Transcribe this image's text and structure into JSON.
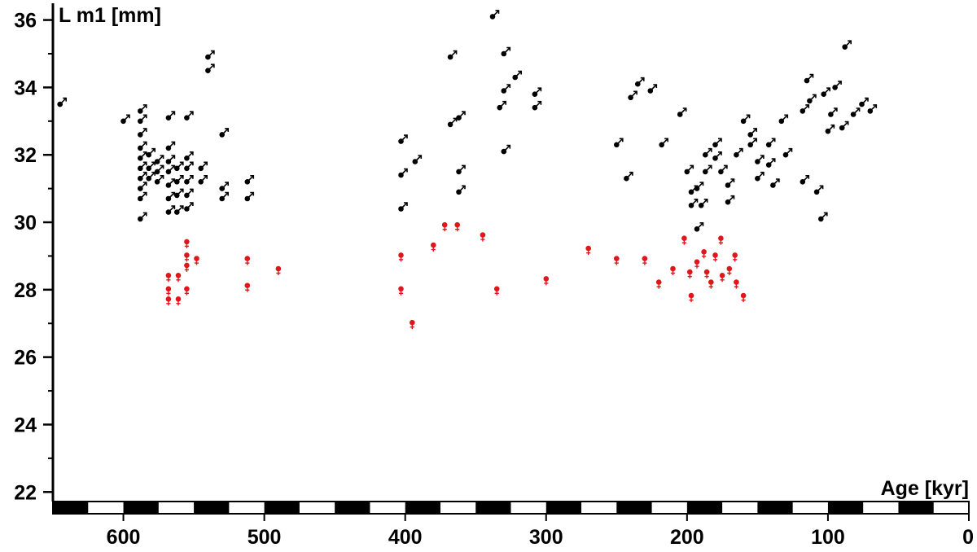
{
  "chart_data": {
    "type": "scatter",
    "title": "",
    "xlabel": "Age [kyr]",
    "ylabel": "L m1 [mm]",
    "xlim": [
      650,
      0
    ],
    "ylim": [
      21.5,
      36.4
    ],
    "x_reversed": true,
    "x_ticks": [
      "600",
      "500",
      "400",
      "300",
      "200",
      "100",
      "0"
    ],
    "y_ticks": [
      "22",
      "24",
      "26",
      "28",
      "30",
      "32",
      "34",
      "36"
    ],
    "grid": false,
    "colors": {
      "male": "#000000",
      "female": "#e0161b"
    },
    "series": [
      {
        "symbol": "male",
        "color": "#000000",
        "points": [
          [
            645,
            33.5
          ],
          [
            600,
            33.0
          ],
          [
            588,
            33.3
          ],
          [
            588,
            33.0
          ],
          [
            588,
            32.6
          ],
          [
            588,
            32.2
          ],
          [
            588,
            31.9
          ],
          [
            588,
            31.6
          ],
          [
            588,
            31.3
          ],
          [
            588,
            31.0
          ],
          [
            588,
            30.7
          ],
          [
            588,
            30.1
          ],
          [
            582,
            32.0
          ],
          [
            582,
            31.6
          ],
          [
            582,
            31.3
          ],
          [
            576,
            31.8
          ],
          [
            576,
            31.5
          ],
          [
            576,
            31.2
          ],
          [
            568,
            33.1
          ],
          [
            568,
            32.2
          ],
          [
            568,
            31.8
          ],
          [
            568,
            31.5
          ],
          [
            568,
            31.1
          ],
          [
            568,
            30.7
          ],
          [
            568,
            30.3
          ],
          [
            562,
            31.6
          ],
          [
            562,
            31.2
          ],
          [
            562,
            30.8
          ],
          [
            562,
            30.3
          ],
          [
            555,
            33.1
          ],
          [
            555,
            31.9
          ],
          [
            555,
            31.6
          ],
          [
            555,
            31.2
          ],
          [
            555,
            30.8
          ],
          [
            555,
            30.4
          ],
          [
            545,
            31.6
          ],
          [
            545,
            31.2
          ],
          [
            540,
            34.9
          ],
          [
            540,
            34.5
          ],
          [
            530,
            32.6
          ],
          [
            530,
            31.0
          ],
          [
            530,
            30.7
          ],
          [
            512,
            31.2
          ],
          [
            512,
            30.7
          ],
          [
            403,
            32.4
          ],
          [
            403,
            31.4
          ],
          [
            403,
            30.4
          ],
          [
            393,
            31.8
          ],
          [
            368,
            34.9
          ],
          [
            362,
            33.1
          ],
          [
            368,
            32.9
          ],
          [
            362,
            31.5
          ],
          [
            362,
            30.9
          ],
          [
            338,
            36.1
          ],
          [
            330,
            35.0
          ],
          [
            322,
            34.3
          ],
          [
            330,
            33.9
          ],
          [
            333,
            33.4
          ],
          [
            330,
            32.1
          ],
          [
            308,
            33.8
          ],
          [
            308,
            33.4
          ],
          [
            250,
            32.3
          ],
          [
            240,
            33.7
          ],
          [
            235,
            34.1
          ],
          [
            226,
            33.9
          ],
          [
            243,
            31.3
          ],
          [
            218,
            32.3
          ],
          [
            205,
            33.2
          ],
          [
            200,
            31.5
          ],
          [
            193,
            31.0
          ],
          [
            190,
            30.5
          ],
          [
            197,
            30.9
          ],
          [
            197,
            30.5
          ],
          [
            193,
            29.8
          ],
          [
            187,
            32.0
          ],
          [
            187,
            31.5
          ],
          [
            180,
            32.3
          ],
          [
            180,
            31.9
          ],
          [
            176,
            31.5
          ],
          [
            171,
            31.1
          ],
          [
            171,
            30.6
          ],
          [
            165,
            32.0
          ],
          [
            160,
            33.0
          ],
          [
            155,
            32.6
          ],
          [
            155,
            32.3
          ],
          [
            150,
            31.8
          ],
          [
            150,
            31.3
          ],
          [
            142,
            32.3
          ],
          [
            142,
            31.7
          ],
          [
            139,
            31.1
          ],
          [
            133,
            33.0
          ],
          [
            130,
            32.0
          ],
          [
            118,
            33.3
          ],
          [
            115,
            34.2
          ],
          [
            113,
            33.6
          ],
          [
            103,
            33.8
          ],
          [
            95,
            34.0
          ],
          [
            88,
            35.2
          ],
          [
            100,
            32.7
          ],
          [
            90,
            32.8
          ],
          [
            98,
            33.2
          ],
          [
            82,
            33.2
          ],
          [
            76,
            33.5
          ],
          [
            70,
            33.3
          ],
          [
            118,
            31.2
          ],
          [
            108,
            30.9
          ],
          [
            105,
            30.1
          ]
        ]
      },
      {
        "symbol": "female",
        "color": "#e0161b",
        "points": [
          [
            568,
            28.4
          ],
          [
            568,
            28.0
          ],
          [
            568,
            27.7
          ],
          [
            561,
            28.4
          ],
          [
            561,
            27.7
          ],
          [
            555,
            29.4
          ],
          [
            555,
            29.0
          ],
          [
            555,
            28.7
          ],
          [
            555,
            28.0
          ],
          [
            548,
            28.9
          ],
          [
            512,
            28.9
          ],
          [
            512,
            28.1
          ],
          [
            490,
            28.6
          ],
          [
            403,
            29.0
          ],
          [
            403,
            28.0
          ],
          [
            395,
            27.0
          ],
          [
            380,
            29.3
          ],
          [
            372,
            29.9
          ],
          [
            363,
            29.9
          ],
          [
            345,
            29.6
          ],
          [
            335,
            28.0
          ],
          [
            300,
            28.3
          ],
          [
            270,
            29.2
          ],
          [
            250,
            28.9
          ],
          [
            230,
            28.9
          ],
          [
            210,
            28.6
          ],
          [
            220,
            28.2
          ],
          [
            202,
            29.5
          ],
          [
            198,
            28.5
          ],
          [
            197,
            27.8
          ],
          [
            193,
            28.8
          ],
          [
            188,
            29.1
          ],
          [
            186,
            28.5
          ],
          [
            183,
            28.2
          ],
          [
            180,
            29.0
          ],
          [
            176,
            29.5
          ],
          [
            175,
            28.4
          ],
          [
            170,
            28.6
          ],
          [
            166,
            29.0
          ],
          [
            165,
            28.2
          ],
          [
            160,
            27.8
          ]
        ]
      }
    ]
  }
}
